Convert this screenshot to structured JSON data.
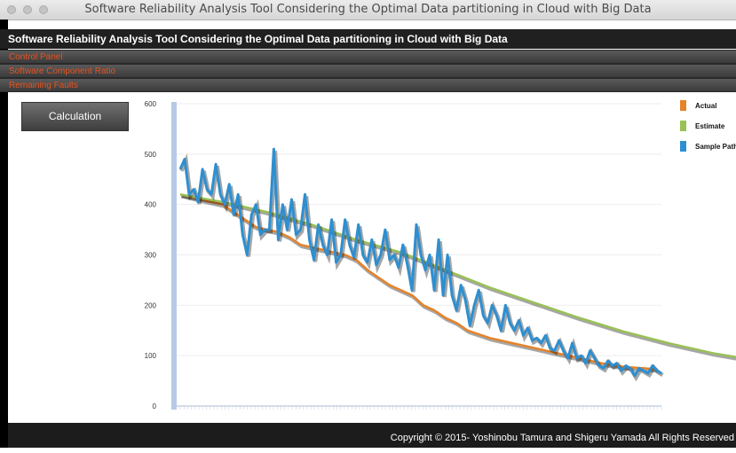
{
  "window": {
    "title": "Software Reliability Analysis Tool Considering the Optimal Data partitioning in Cloud with Big Data"
  },
  "app": {
    "header": "Software Reliability Analysis Tool Considering the Optimal Data partitioning in Cloud with Big Data"
  },
  "panels": [
    "Control Panel",
    "Software Component Ratio",
    "Remaining Faults"
  ],
  "calc_button": "Calculation",
  "footer": "Copyright © 2015- Yoshinobu Tamura and Shigeru Yamada All Rights Reserved",
  "colors": {
    "actual": "#e5832a",
    "estimate": "#98c156",
    "sample": "#2e8fd0",
    "accent": "#e8521f"
  },
  "chart_data": {
    "type": "line",
    "ylim": [
      0,
      600
    ],
    "yticks": [
      0,
      100,
      200,
      300,
      400,
      500,
      600
    ],
    "legend_position": "right",
    "n_points": 130,
    "series": [
      {
        "name": "Actual",
        "points": [
          [
            1,
            420
          ],
          [
            10,
            410
          ],
          [
            20,
            400
          ],
          [
            25,
            385
          ],
          [
            30,
            370
          ],
          [
            35,
            355
          ],
          [
            40,
            350
          ],
          [
            45,
            345
          ],
          [
            50,
            335
          ],
          [
            55,
            320
          ],
          [
            60,
            315
          ],
          [
            65,
            310
          ],
          [
            70,
            305
          ],
          [
            75,
            300
          ],
          [
            80,
            290
          ],
          [
            85,
            270
          ],
          [
            90,
            255
          ],
          [
            95,
            240
          ],
          [
            100,
            230
          ],
          [
            105,
            220
          ],
          [
            110,
            200
          ],
          [
            115,
            190
          ],
          [
            120,
            175
          ],
          [
            125,
            165
          ],
          [
            130,
            150
          ],
          [
            140,
            135
          ],
          [
            150,
            125
          ],
          [
            160,
            115
          ],
          [
            170,
            105
          ],
          [
            180,
            95
          ],
          [
            190,
            85
          ],
          [
            200,
            78
          ],
          [
            215,
            73
          ]
        ]
      },
      {
        "name": "Estimate",
        "points": [
          [
            1,
            420
          ],
          [
            20,
            405
          ],
          [
            40,
            385
          ],
          [
            60,
            360
          ],
          [
            80,
            330
          ],
          [
            100,
            305
          ],
          [
            120,
            270
          ],
          [
            140,
            235
          ],
          [
            160,
            205
          ],
          [
            180,
            175
          ],
          [
            200,
            148
          ],
          [
            220,
            125
          ],
          [
            240,
            105
          ],
          [
            260,
            90
          ],
          [
            280,
            78
          ],
          [
            300,
            71
          ],
          [
            320,
            69
          ]
        ]
      },
      {
        "name": "Sample Path",
        "points": [
          [
            1,
            470
          ],
          [
            3,
            490
          ],
          [
            5,
            420
          ],
          [
            7,
            430
          ],
          [
            9,
            405
          ],
          [
            11,
            470
          ],
          [
            13,
            430
          ],
          [
            15,
            420
          ],
          [
            17,
            480
          ],
          [
            19,
            420
          ],
          [
            21,
            400
          ],
          [
            23,
            440
          ],
          [
            25,
            380
          ],
          [
            27,
            420
          ],
          [
            29,
            340
          ],
          [
            31,
            300
          ],
          [
            33,
            380
          ],
          [
            35,
            400
          ],
          [
            37,
            340
          ],
          [
            39,
            350
          ],
          [
            41,
            350
          ],
          [
            43,
            510
          ],
          [
            45,
            330
          ],
          [
            47,
            400
          ],
          [
            49,
            350
          ],
          [
            51,
            410
          ],
          [
            53,
            340
          ],
          [
            55,
            350
          ],
          [
            57,
            420
          ],
          [
            59,
            330
          ],
          [
            61,
            290
          ],
          [
            63,
            360
          ],
          [
            65,
            320
          ],
          [
            67,
            300
          ],
          [
            69,
            370
          ],
          [
            71,
            285
          ],
          [
            73,
            300
          ],
          [
            75,
            370
          ],
          [
            77,
            320
          ],
          [
            79,
            295
          ],
          [
            81,
            360
          ],
          [
            83,
            300
          ],
          [
            85,
            285
          ],
          [
            87,
            330
          ],
          [
            89,
            280
          ],
          [
            91,
            300
          ],
          [
            93,
            350
          ],
          [
            95,
            290
          ],
          [
            97,
            300
          ],
          [
            99,
            275
          ],
          [
            101,
            320
          ],
          [
            103,
            280
          ],
          [
            105,
            230
          ],
          [
            107,
            360
          ],
          [
            109,
            300
          ],
          [
            111,
            270
          ],
          [
            113,
            300
          ],
          [
            115,
            230
          ],
          [
            117,
            330
          ],
          [
            119,
            220
          ],
          [
            121,
            300
          ],
          [
            123,
            220
          ],
          [
            125,
            190
          ],
          [
            127,
            240
          ],
          [
            129,
            210
          ],
          [
            131,
            160
          ],
          [
            133,
            200
          ],
          [
            135,
            230
          ],
          [
            137,
            180
          ],
          [
            139,
            165
          ],
          [
            141,
            200
          ],
          [
            143,
            180
          ],
          [
            145,
            150
          ],
          [
            147,
            200
          ],
          [
            149,
            165
          ],
          [
            151,
            150
          ],
          [
            153,
            170
          ],
          [
            155,
            140
          ],
          [
            157,
            155
          ],
          [
            159,
            130
          ],
          [
            161,
            135
          ],
          [
            163,
            125
          ],
          [
            165,
            140
          ],
          [
            167,
            115
          ],
          [
            169,
            110
          ],
          [
            171,
            130
          ],
          [
            173,
            110
          ],
          [
            175,
            95
          ],
          [
            177,
            125
          ],
          [
            179,
            95
          ],
          [
            181,
            100
          ],
          [
            183,
            85
          ],
          [
            185,
            110
          ],
          [
            187,
            95
          ],
          [
            189,
            80
          ],
          [
            191,
            75
          ],
          [
            193,
            90
          ],
          [
            195,
            80
          ],
          [
            197,
            85
          ],
          [
            199,
            70
          ],
          [
            201,
            80
          ],
          [
            203,
            75
          ],
          [
            205,
            60
          ],
          [
            207,
            75
          ],
          [
            209,
            70
          ],
          [
            211,
            65
          ],
          [
            213,
            80
          ],
          [
            215,
            70
          ],
          [
            217,
            65
          ]
        ]
      }
    ]
  }
}
